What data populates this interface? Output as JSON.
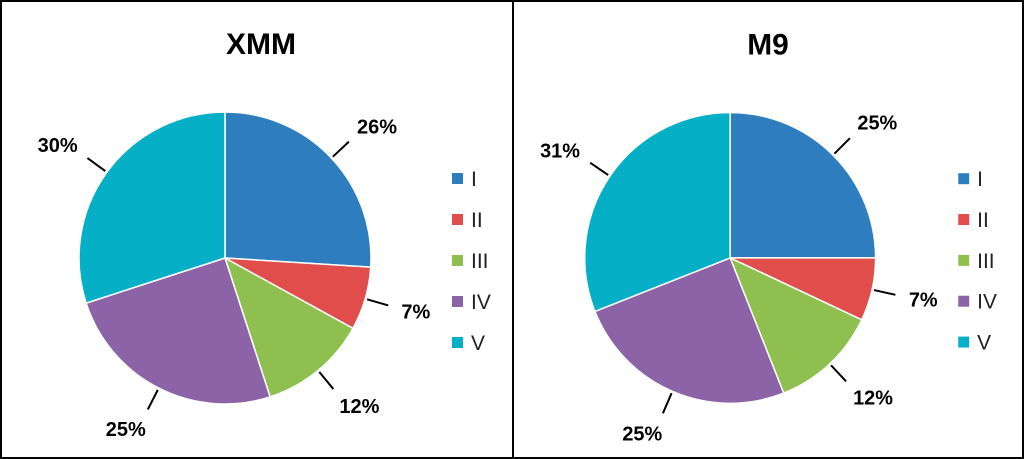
{
  "chart_data": [
    {
      "type": "pie",
      "title": "XMM",
      "legend_position": "right",
      "categories": [
        "I",
        "II",
        "III",
        "IV",
        "V"
      ],
      "values": [
        26,
        7,
        12,
        25,
        30
      ],
      "labels": [
        "26%",
        "7%",
        "12%",
        "25%",
        "30%"
      ]
    },
    {
      "type": "pie",
      "title": "M9",
      "legend_position": "right",
      "categories": [
        "I",
        "II",
        "III",
        "IV",
        "V"
      ],
      "values": [
        25,
        7,
        12,
        25,
        31
      ],
      "labels": [
        "25%",
        "7%",
        "12%",
        "25%",
        "31%"
      ]
    }
  ],
  "colors": {
    "I": "#2e7ebf",
    "II": "#e04d4a",
    "III": "#8fbf4e",
    "IV": "#8c63a7",
    "V": "#05afc5"
  }
}
